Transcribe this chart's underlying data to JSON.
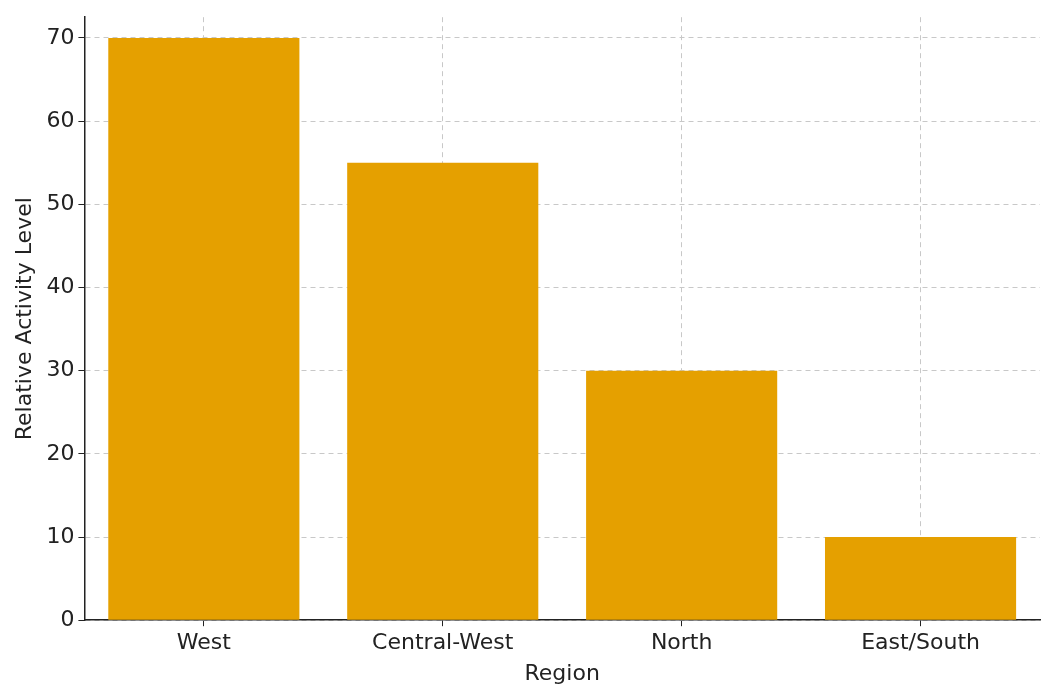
{
  "chart_data": {
    "type": "bar",
    "xlabel": "Region",
    "ylabel": "Relative Activity Level",
    "categories": [
      "West",
      "Central-West",
      "North",
      "East/South"
    ],
    "values": [
      70,
      55,
      30,
      10
    ],
    "color": "#e5a000",
    "ylim": [
      0,
      72.5
    ],
    "yticks": [
      0,
      10,
      20,
      30,
      40,
      50,
      60,
      70
    ],
    "grid": true
  }
}
